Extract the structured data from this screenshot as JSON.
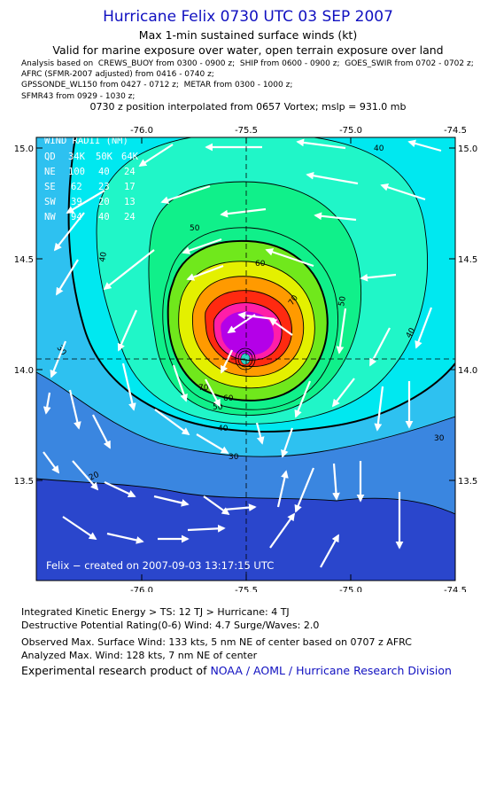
{
  "header": {
    "title": "Hurricane Felix 0730 UTC 03 SEP 2007",
    "subtitle": "Max 1-min sustained surface winds (kt)",
    "valid_line": "Valid for marine exposure over water, open terrain exposure over land",
    "analysis_lines": [
      "Analysis based on  CREWS_BUOY from 0300 - 0900 z;  SHIP from 0600 - 0900 z;  GOES_SWIR from 0702 - 0702 z;",
      "AFRC (SFMR-2007 adjusted) from 0416 - 0740 z;",
      "GPSSONDE_WL150 from 0427 - 0712 z;  METAR from 0300 - 1000 z;",
      "SFMR43 from 0929 - 1030 z;"
    ],
    "position_line": "0730 z position interpolated from 0657 Vortex; mslp = 931.0 mb"
  },
  "map": {
    "lon_ticks": [
      "-76.0",
      "-75.5",
      "-75.0",
      "-74.5"
    ],
    "lat_ticks": [
      "15.0",
      "14.5",
      "14.0",
      "13.5"
    ],
    "extent": {
      "lon": [
        -76.47,
        -74.47
      ],
      "lat": [
        13.05,
        15.05
      ]
    },
    "center": {
      "lon": -75.5,
      "lat": 14.05
    },
    "wind_radii_table": {
      "title": "WIND RADII (NM)",
      "header": [
        "QD",
        "34K",
        "50K",
        "64K"
      ],
      "rows": [
        [
          "NE",
          "100",
          "40",
          "24"
        ],
        [
          "SE",
          "62",
          "23",
          "17"
        ],
        [
          "SW",
          "39",
          "20",
          "13"
        ],
        [
          "NW",
          "94",
          "40",
          "24"
        ]
      ]
    },
    "contour_labels": [
      "20",
      "30",
      "40",
      "50",
      "60",
      "70"
    ],
    "created_label": "Felix  −  created on 2007-09-03 13:17:15 UTC",
    "colors": {
      "under_20": "#2a46cc",
      "c20": "#3a86e0",
      "c30": "#2ec1f0",
      "c34": "#00e8f0",
      "c40": "#20f6c8",
      "c50": "#10f08a",
      "c64": "#70e81c",
      "c70": "#e4f000",
      "c80": "#ff9a00",
      "c90": "#ff2a10",
      "c100": "#ff1ea8",
      "c110": "#b400e8",
      "arrow": "#ffffff"
    }
  },
  "footer": {
    "ike_line": "Integrated Kinetic Energy > TS: 12 TJ   > Hurricane: 4 TJ",
    "dpr_line": "Destructive Potential Rating(0-6)   Wind: 4.7 Surge/Waves: 2.0",
    "observed_line": "Observed Max. Surface Wind: 133 kts, 5 nm NE of center based on 0707 z AFRC",
    "analyzed_line": "Analyzed Max. Wind: 128 kts, 7 nm NE of center",
    "credit_prefix": "Experimental research product of ",
    "credit_org": "NOAA / AOML / Hurricane Research Division"
  }
}
